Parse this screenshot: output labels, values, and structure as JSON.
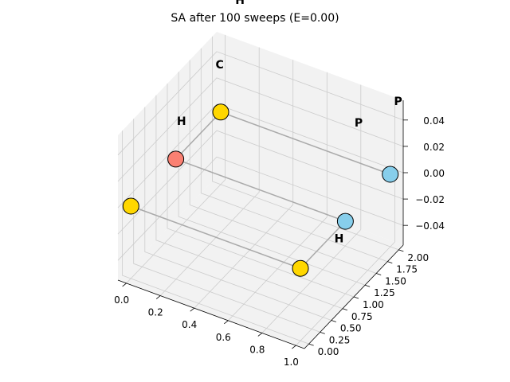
{
  "chart_data": {
    "type": "scatter",
    "projection": "3d",
    "title": "SA after 100 sweeps (E=0.00)",
    "xlabel": "",
    "ylabel": "",
    "zlabel": "",
    "grid": true,
    "xlim": [
      -0.05,
      1.05
    ],
    "ylim": [
      -0.1,
      2.1
    ],
    "zlim": [
      -0.055,
      0.055
    ],
    "x_ticks": [
      "0.0",
      "0.2",
      "0.4",
      "0.6",
      "0.8",
      "1.0"
    ],
    "y_ticks": [
      "0.00",
      "0.25",
      "0.50",
      "0.75",
      "1.00",
      "1.25",
      "1.50",
      "1.75",
      "2.00"
    ],
    "z_ticks": [
      "−0.04",
      "−0.02",
      "0.00",
      "0.02",
      "0.04"
    ],
    "chain": [
      [
        0,
        0,
        0
      ],
      [
        1,
        0,
        0
      ],
      [
        1,
        1,
        0
      ],
      [
        0,
        1,
        0
      ],
      [
        0,
        2,
        0
      ],
      [
        1,
        2,
        0
      ]
    ],
    "points": [
      {
        "x": 0,
        "y": 0,
        "z": 0,
        "color": "#ffd700"
      },
      {
        "x": 1,
        "y": 0,
        "z": 0,
        "color": "#ffd700"
      },
      {
        "x": 1,
        "y": 1,
        "z": 0,
        "color": "#87ceeb"
      },
      {
        "x": 0,
        "y": 1,
        "z": 0,
        "color": "#fa8072"
      },
      {
        "x": 0,
        "y": 2,
        "z": 0,
        "color": "#ffd700"
      },
      {
        "x": 1,
        "y": 2,
        "z": 0,
        "color": "#87ceeb"
      }
    ],
    "annotations": [
      {
        "text": "H",
        "x": 0.02,
        "y": 1.05,
        "z": 0.025
      },
      {
        "text": "C",
        "x": 0.1,
        "y": 1.6,
        "z": 0.052
      },
      {
        "text": "H",
        "x": 0.1,
        "y": 2.05,
        "z": 0.085
      },
      {
        "text": "P",
        "x": 0.8,
        "y": 2.05,
        "z": 0.025
      },
      {
        "text": "P",
        "x": 1.02,
        "y": 2.1,
        "z": 0.05
      },
      {
        "text": "H",
        "x": 0.95,
        "y": 1.05,
        "z": -0.02
      }
    ],
    "chain_color": "#aaaaaa",
    "marker_edge_color": "#000000",
    "pane_color": "#f2f2f2",
    "grid_color": "#cccccc"
  }
}
